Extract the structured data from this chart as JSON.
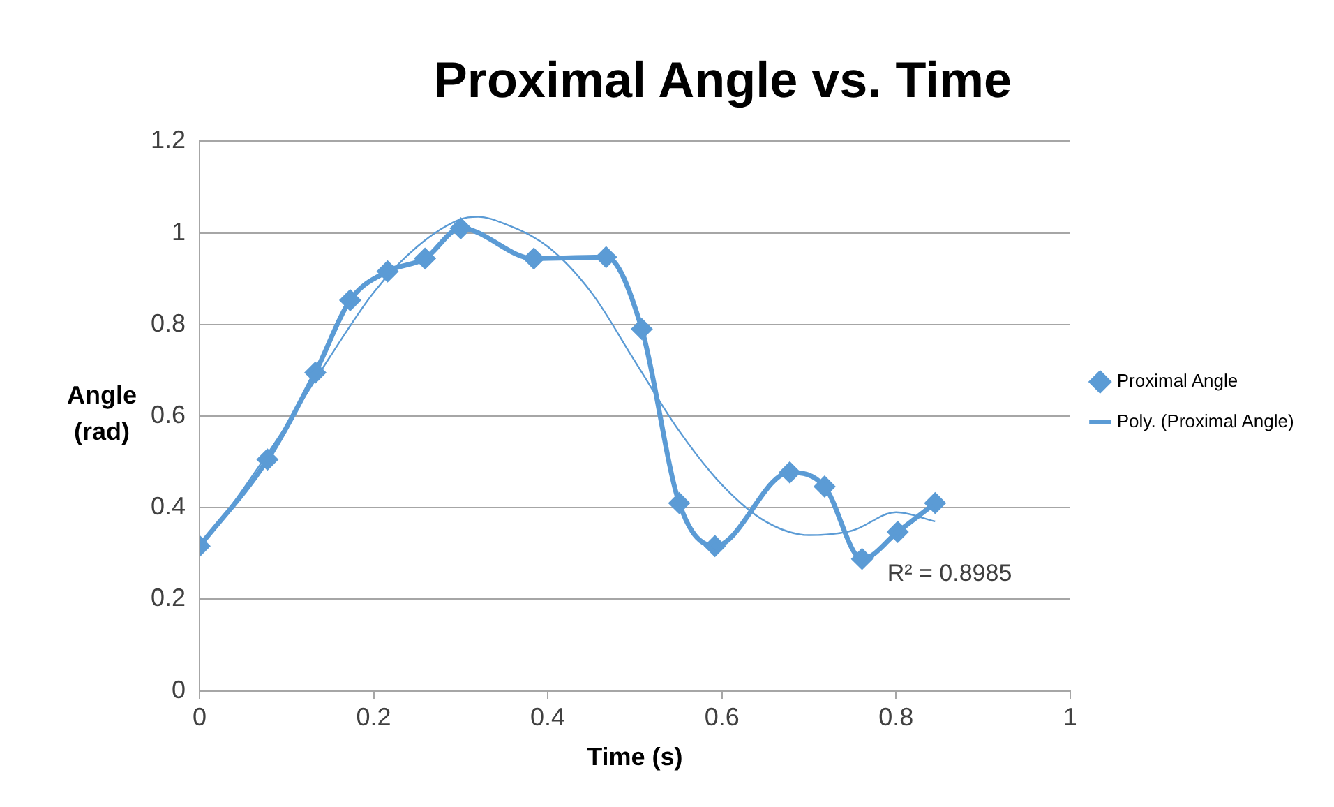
{
  "chart_data": {
    "type": "line",
    "title": "Proximal Angle vs. Time",
    "xlabel": "Time (s)",
    "ylabel": "Angle (rad)",
    "xlim": [
      0,
      1
    ],
    "xticks": [
      0,
      0.2,
      0.4,
      0.6,
      0.8,
      1
    ],
    "ylim": [
      0,
      1.2
    ],
    "yticks": [
      0,
      0.2,
      0.4,
      0.6,
      0.8,
      1,
      1.2
    ],
    "grid": "y",
    "legend": "right",
    "marker": "diamond",
    "line_style": "solid",
    "series": [
      {
        "name": "Proximal Angle",
        "color": "#5b9bd5",
        "x": [
          0,
          0.078,
          0.133,
          0.173,
          0.216,
          0.259,
          0.3,
          0.384,
          0.467,
          0.508,
          0.551,
          0.592,
          0.678,
          0.718,
          0.761,
          0.802,
          0.845
        ],
        "values": [
          0.316,
          0.505,
          0.695,
          0.853,
          0.916,
          0.944,
          1.01,
          0.944,
          0.947,
          0.79,
          0.41,
          0.316,
          0.477,
          0.446,
          0.288,
          0.347,
          0.41
        ]
      },
      {
        "name": "Poly. (Proximal Angle)",
        "type": "line",
        "marker": "none",
        "color": "#5b9bd5",
        "x": [
          0,
          0.05,
          0.1,
          0.15,
          0.2,
          0.25,
          0.3,
          0.32,
          0.35,
          0.4,
          0.45,
          0.5,
          0.55,
          0.6,
          0.65,
          0.7,
          0.75,
          0.8,
          0.845
        ],
        "values": [
          0.31,
          0.44,
          0.58,
          0.73,
          0.87,
          0.97,
          1.03,
          1.035,
          1.02,
          0.97,
          0.87,
          0.72,
          0.57,
          0.45,
          0.37,
          0.34,
          0.35,
          0.39,
          0.37
        ]
      }
    ],
    "annotations": [
      "R² = 0.8985"
    ]
  }
}
